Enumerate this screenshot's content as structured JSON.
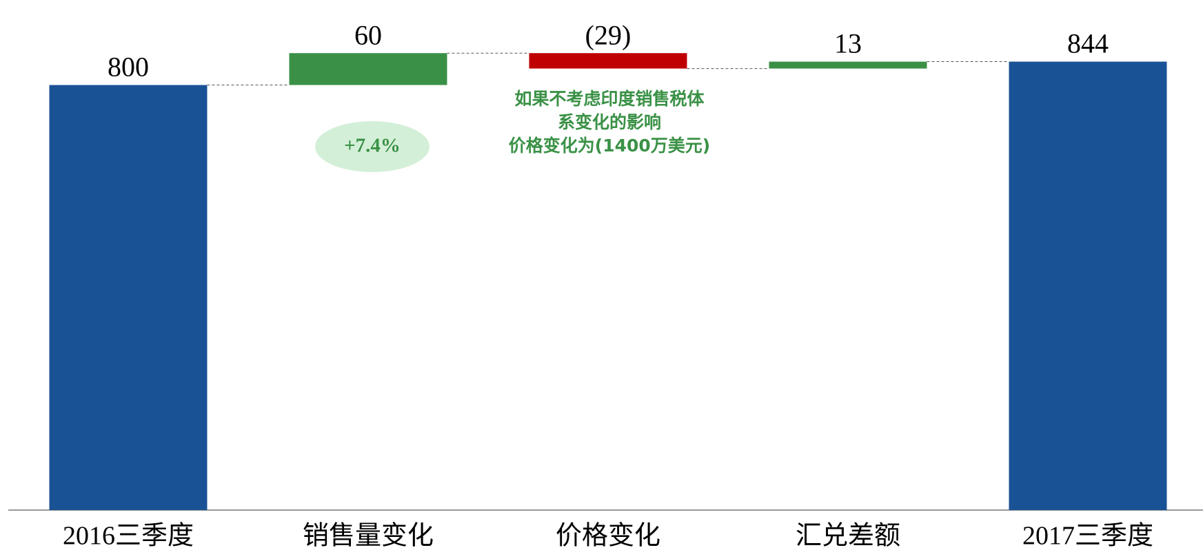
{
  "chart_data": {
    "type": "waterfall",
    "categories": [
      "2016三季度",
      "销售量变化",
      "价格变化",
      "汇兑差额",
      "2017三季度"
    ],
    "values": [
      800,
      60,
      -29,
      13,
      844
    ],
    "value_labels": [
      "800",
      "60",
      "(29)",
      "13",
      "844"
    ],
    "measure": [
      "total",
      "relative",
      "relative",
      "relative",
      "total"
    ],
    "colors": {
      "total": "#1a5296",
      "increase": "#3a9146",
      "decrease": "#c00000"
    },
    "ylim": [
      0,
      960
    ],
    "annotations": [
      {
        "text": "+7.4%",
        "category": 1
      },
      {
        "lines": [
          "如果不考虑印度销售税体",
          "系变化的影响",
          "价格变化为(1400万美元)"
        ],
        "category": 2
      }
    ]
  }
}
